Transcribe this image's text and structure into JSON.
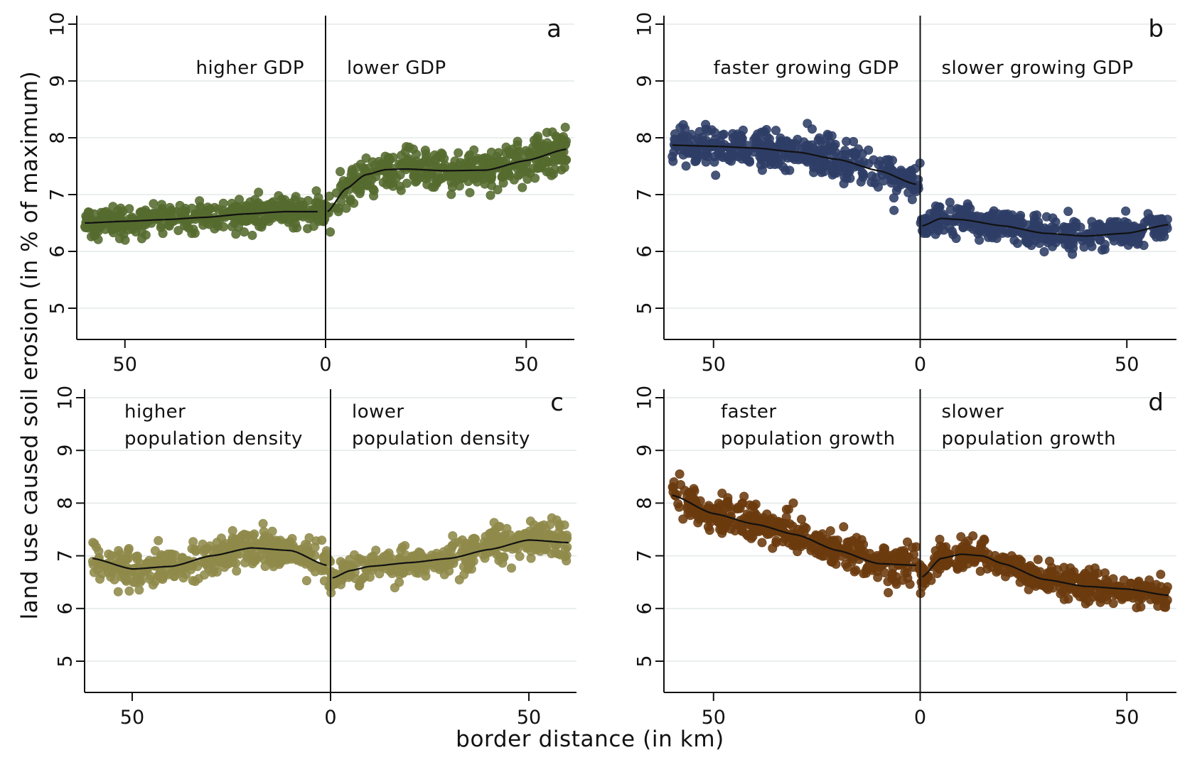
{
  "figure": {
    "y_axis_title": "land use caused soil erosion (in % of maximum)",
    "x_axis_title": "border distance (in km)"
  },
  "chart_data": [
    {
      "type": "scatter",
      "panel": "a",
      "title": "",
      "xlabel": "border distance (in km)",
      "ylabel": "land use caused soil erosion (in % of maximum)",
      "ylim": [
        5,
        10
      ],
      "xlim": [
        -62,
        62
      ],
      "xticks": [
        -50,
        0,
        50
      ],
      "xtick_labels": [
        "50",
        "0",
        "50"
      ],
      "yticks": [
        5,
        6,
        7,
        8,
        9,
        10
      ],
      "ytick_labels": [
        "5",
        "6",
        "7",
        "8",
        "9",
        "10"
      ],
      "grid": true,
      "border_line_x": 0,
      "region_labels": {
        "left": [
          "higher GDP"
        ],
        "right": [
          "lower GDP"
        ]
      },
      "color": "#556b2f",
      "series": [
        {
          "side": "left",
          "range": [
            -60,
            0
          ],
          "noise": 0.22,
          "fit": {
            "x": [
              -60,
              -50,
              -40,
              -30,
              -20,
              -10,
              -2
            ],
            "y": [
              6.5,
              6.53,
              6.56,
              6.6,
              6.66,
              6.7,
              6.7
            ]
          }
        },
        {
          "side": "right",
          "range": [
            0,
            60
          ],
          "noise": 0.3,
          "fit": {
            "x": [
              0.5,
              5,
              10,
              15,
              20,
              30,
              40,
              50,
              60
            ],
            "y": [
              6.7,
              7.1,
              7.35,
              7.44,
              7.45,
              7.42,
              7.43,
              7.6,
              7.8
            ]
          }
        }
      ]
    },
    {
      "type": "scatter",
      "panel": "b",
      "title": "",
      "xlabel": "border distance (in km)",
      "ylabel": "land use caused soil erosion (in % of maximum)",
      "ylim": [
        5,
        10
      ],
      "xlim": [
        -62,
        62
      ],
      "xticks": [
        -50,
        0,
        50
      ],
      "xtick_labels": [
        "50",
        "0",
        "50"
      ],
      "yticks": [
        5,
        6,
        7,
        8,
        9,
        10
      ],
      "ytick_labels": [
        "5",
        "6",
        "7",
        "8",
        "9",
        "10"
      ],
      "grid": true,
      "border_line_x": 0,
      "region_labels": {
        "left": [
          "faster growing GDP"
        ],
        "right": [
          "slower growing GDP"
        ]
      },
      "color": "#2e3e66",
      "series": [
        {
          "side": "left",
          "range": [
            -60,
            0
          ],
          "noise": 0.28,
          "fit": {
            "x": [
              -60,
              -50,
              -40,
              -30,
              -20,
              -10,
              -1
            ],
            "y": [
              7.87,
              7.85,
              7.82,
              7.75,
              7.62,
              7.42,
              7.18
            ]
          }
        },
        {
          "side": "right",
          "range": [
            0,
            60
          ],
          "noise": 0.22,
          "fit": {
            "x": [
              0.5,
              5,
              10,
              20,
              30,
              40,
              50,
              60
            ],
            "y": [
              6.45,
              6.58,
              6.56,
              6.45,
              6.32,
              6.27,
              6.32,
              6.47
            ]
          }
        }
      ]
    },
    {
      "type": "scatter",
      "panel": "c",
      "title": "",
      "xlabel": "border distance (in km)",
      "ylabel": "land use caused soil erosion (in % of maximum)",
      "ylim": [
        5,
        10
      ],
      "xlim": [
        -62,
        62
      ],
      "xticks": [
        -50,
        0,
        50
      ],
      "xtick_labels": [
        "50",
        "0",
        "50"
      ],
      "yticks": [
        5,
        6,
        7,
        8,
        9,
        10
      ],
      "ytick_labels": [
        "5",
        "6",
        "7",
        "8",
        "9",
        "10"
      ],
      "grid": true,
      "border_line_x": 0,
      "region_labels": {
        "left": [
          "higher",
          "population density"
        ],
        "right": [
          "lower",
          "population density"
        ]
      },
      "color": "#8f8a4a",
      "series": [
        {
          "side": "left",
          "range": [
            -60,
            0
          ],
          "noise": 0.28,
          "fit": {
            "x": [
              -60,
              -50,
              -40,
              -30,
              -20,
              -10,
              -1
            ],
            "y": [
              6.95,
              6.75,
              6.8,
              7.0,
              7.15,
              7.1,
              6.82
            ]
          }
        },
        {
          "side": "right",
          "range": [
            0,
            60
          ],
          "noise": 0.26,
          "fit": {
            "x": [
              0.5,
              5,
              10,
              20,
              30,
              40,
              50,
              60
            ],
            "y": [
              6.58,
              6.72,
              6.8,
              6.87,
              6.95,
              7.12,
              7.3,
              7.25
            ]
          }
        }
      ]
    },
    {
      "type": "scatter",
      "panel": "d",
      "title": "",
      "xlabel": "border distance (in km)",
      "ylabel": "land use caused soil erosion (in % of maximum)",
      "ylim": [
        5,
        10
      ],
      "xlim": [
        -62,
        62
      ],
      "xticks": [
        -50,
        0,
        50
      ],
      "xtick_labels": [
        "50",
        "0",
        "50"
      ],
      "yticks": [
        5,
        6,
        7,
        8,
        9,
        10
      ],
      "ytick_labels": [
        "5",
        "6",
        "7",
        "8",
        "9",
        "10"
      ],
      "grid": true,
      "border_line_x": 0,
      "region_labels": {
        "left": [
          "faster",
          "population growth"
        ],
        "right": [
          "slower",
          "population growth"
        ]
      },
      "color": "#6b3a0e",
      "series": [
        {
          "side": "left",
          "range": [
            -60,
            0
          ],
          "noise": 0.3,
          "fit": {
            "x": [
              -60,
              -50,
              -40,
              -30,
              -20,
              -10,
              -1
            ],
            "y": [
              8.15,
              7.8,
              7.6,
              7.4,
              7.1,
              6.85,
              6.82
            ]
          }
        },
        {
          "side": "right",
          "range": [
            0,
            60
          ],
          "noise": 0.22,
          "fit": {
            "x": [
              0.5,
              5,
              10,
              15,
              20,
              30,
              40,
              50,
              60
            ],
            "y": [
              6.6,
              6.95,
              7.03,
              7.0,
              6.85,
              6.55,
              6.42,
              6.37,
              6.25
            ]
          }
        }
      ]
    }
  ]
}
